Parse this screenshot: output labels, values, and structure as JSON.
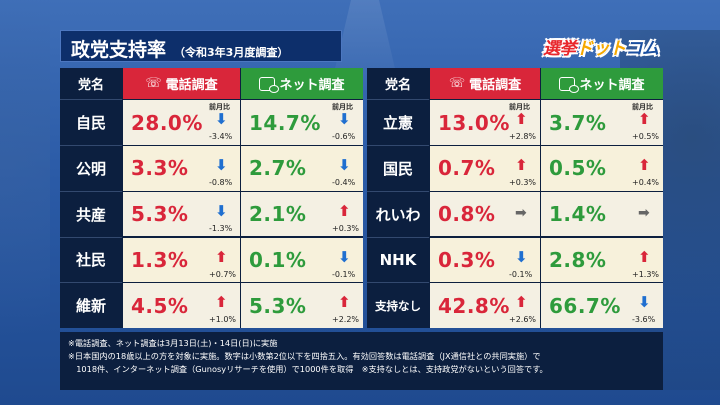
{
  "title": "政党支持率",
  "subtitle": "（令和3年3月度調査）",
  "logo": {
    "part1": "選挙",
    "part2": "ドット",
    "part3": "コム"
  },
  "headers": {
    "party": "党名",
    "phone": "電話調査",
    "net": "ネット調査"
  },
  "delta_label": "前月比",
  "left_rows": [
    {
      "party": "自民",
      "phone": "28.0%",
      "phone_dir": "down",
      "phone_delta": "-3.4%",
      "net": "14.7%",
      "net_dir": "down",
      "net_delta": "-0.6%"
    },
    {
      "party": "公明",
      "phone": "3.3%",
      "phone_dir": "down",
      "phone_delta": "-0.8%",
      "net": "2.7%",
      "net_dir": "down",
      "net_delta": "-0.4%"
    },
    {
      "party": "共産",
      "phone": "5.3%",
      "phone_dir": "down",
      "phone_delta": "-1.3%",
      "net": "2.1%",
      "net_dir": "up",
      "net_delta": "+0.3%"
    },
    {
      "party": "社民",
      "phone": "1.3%",
      "phone_dir": "up",
      "phone_delta": "+0.7%",
      "net": "0.1%",
      "net_dir": "down",
      "net_delta": "-0.1%"
    },
    {
      "party": "維新",
      "phone": "4.5%",
      "phone_dir": "up",
      "phone_delta": "+1.0%",
      "net": "5.3%",
      "net_dir": "up",
      "net_delta": "+2.2%"
    }
  ],
  "right_rows": [
    {
      "party": "立憲",
      "phone": "13.0%",
      "phone_dir": "up",
      "phone_delta": "+2.8%",
      "net": "3.7%",
      "net_dir": "up",
      "net_delta": "+0.5%"
    },
    {
      "party": "国民",
      "phone": "0.7%",
      "phone_dir": "up",
      "phone_delta": "+0.3%",
      "net": "0.5%",
      "net_dir": "up",
      "net_delta": "+0.4%"
    },
    {
      "party": "れいわ",
      "phone": "0.8%",
      "phone_dir": "flat",
      "phone_delta": "",
      "net": "1.4%",
      "net_dir": "flat",
      "net_delta": ""
    },
    {
      "party": "NHK",
      "phone": "0.3%",
      "phone_dir": "down",
      "phone_delta": "-0.1%",
      "net": "2.8%",
      "net_dir": "up",
      "net_delta": "+1.3%"
    },
    {
      "party": "支持なし",
      "phone": "42.8%",
      "phone_dir": "up",
      "phone_delta": "+2.6%",
      "net": "66.7%",
      "net_dir": "down",
      "net_delta": "-3.6%"
    }
  ],
  "notes": [
    "※電話調査、ネット調査は3月13日(土)・14日(日)に実施",
    "※日本国内の18歳以上の方を対象に実施。数字は小数第2位以下を四捨五入。有効回答数は電話調査（JX通信社との共同実施）で",
    "　1018件、インターネット調査（Gunosyリサーチを使用）で1000件を取得　※支持なしとは、支持政党がないという回答です。"
  ],
  "colors": {
    "phone": "#d9263a",
    "net": "#2e9b3c",
    "up": "#d9263a",
    "down": "#1f6fd0",
    "flat": "#666666"
  },
  "icons": {
    "phone": "phone-icon",
    "net": "smartphone-chat-icon",
    "up": "arrow-up-icon",
    "down": "arrow-down-icon",
    "flat": "arrow-right-icon"
  }
}
